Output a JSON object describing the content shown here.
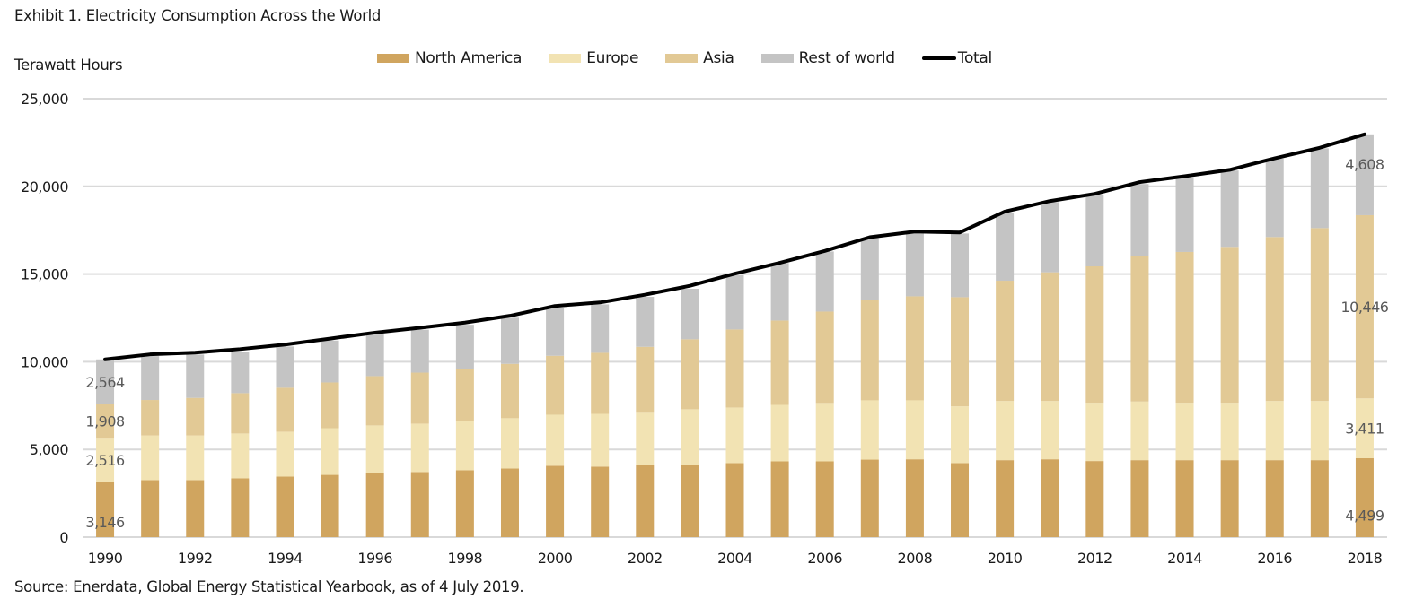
{
  "header": {
    "title": "Exhibit 1. Electricity Consumption Across the World",
    "source": "Source: Enerdata, Global Energy Statistical Yearbook, as of 4 July 2019."
  },
  "chart_data": {
    "type": "bar",
    "stacked": true,
    "title": "Exhibit 1. Electricity Consumption Across the World",
    "xlabel": "",
    "ylabel": "Terawatt Hours",
    "ylim": [
      0,
      25000
    ],
    "yticks": [
      0,
      5000,
      10000,
      15000,
      20000,
      25000
    ],
    "ytick_labels": [
      "0",
      "5,000",
      "10,000",
      "15,000",
      "20,000",
      "25,000"
    ],
    "grid": true,
    "legend_position": "top-center",
    "categories": [
      1990,
      1991,
      1992,
      1993,
      1994,
      1995,
      1996,
      1997,
      1998,
      1999,
      2000,
      2001,
      2002,
      2003,
      2004,
      2005,
      2006,
      2007,
      2008,
      2009,
      2010,
      2011,
      2012,
      2013,
      2014,
      2015,
      2016,
      2017,
      2018
    ],
    "xtick_labels": [
      "1990",
      "1992",
      "1994",
      "1996",
      "1998",
      "2000",
      "2002",
      "2004",
      "2006",
      "2008",
      "2010",
      "2012",
      "2014",
      "2016",
      "2018"
    ],
    "series": [
      {
        "name": "North America",
        "kind": "bar",
        "color": "#D0A55F",
        "values": [
          3146,
          3250,
          3250,
          3350,
          3450,
          3550,
          3660,
          3710,
          3810,
          3910,
          4070,
          4020,
          4120,
          4120,
          4220,
          4320,
          4320,
          4420,
          4440,
          4220,
          4390,
          4440,
          4340,
          4390,
          4390,
          4390,
          4390,
          4390,
          4499
        ]
      },
      {
        "name": "Europe",
        "kind": "bar",
        "color": "#F2E3B3",
        "values": [
          2516,
          2550,
          2550,
          2560,
          2560,
          2660,
          2710,
          2760,
          2810,
          2870,
          2910,
          3010,
          3020,
          3170,
          3170,
          3220,
          3330,
          3380,
          3360,
          3240,
          3370,
          3320,
          3320,
          3340,
          3270,
          3270,
          3370,
          3370,
          3411
        ]
      },
      {
        "name": "Asia",
        "kind": "bar",
        "color": "#E2C995",
        "values": [
          1908,
          2020,
          2140,
          2300,
          2510,
          2610,
          2810,
          2910,
          2970,
          3100,
          3360,
          3480,
          3710,
          3990,
          4450,
          4810,
          5210,
          5740,
          5930,
          6220,
          6860,
          7340,
          7780,
          8290,
          8600,
          8890,
          9350,
          9860,
          10446
        ]
      },
      {
        "name": "Rest of world",
        "kind": "bar",
        "color": "#C4C4C4",
        "values": [
          2564,
          2500,
          2470,
          2370,
          2350,
          2390,
          2370,
          2450,
          2520,
          2630,
          2740,
          2760,
          2850,
          2880,
          3090,
          3280,
          3430,
          3520,
          3580,
          3630,
          3890,
          4000,
          4090,
          4110,
          4220,
          4350,
          4470,
          4550,
          4608
        ]
      },
      {
        "name": "Total",
        "kind": "line",
        "color": "#000000",
        "values": [
          10134,
          10420,
          10520,
          10720,
          10980,
          11320,
          11660,
          11940,
          12230,
          12620,
          13180,
          13380,
          13820,
          14330,
          15020,
          15640,
          16320,
          17100,
          17420,
          17370,
          18560,
          19160,
          19570,
          20240,
          20580,
          20940,
          21600,
          22200,
          22964
        ]
      }
    ],
    "data_labels": [
      {
        "year": 1990,
        "series": "North America",
        "text": "3,146"
      },
      {
        "year": 1990,
        "series": "Europe",
        "text": "2,516"
      },
      {
        "year": 1990,
        "series": "Asia",
        "text": "1,908"
      },
      {
        "year": 1990,
        "series": "Rest of world",
        "text": "2,564"
      },
      {
        "year": 2018,
        "series": "North America",
        "text": "4,499"
      },
      {
        "year": 2018,
        "series": "Europe",
        "text": "3,411"
      },
      {
        "year": 2018,
        "series": "Asia",
        "text": "10,446"
      },
      {
        "year": 2018,
        "series": "Rest of world",
        "text": "4,608"
      }
    ]
  }
}
